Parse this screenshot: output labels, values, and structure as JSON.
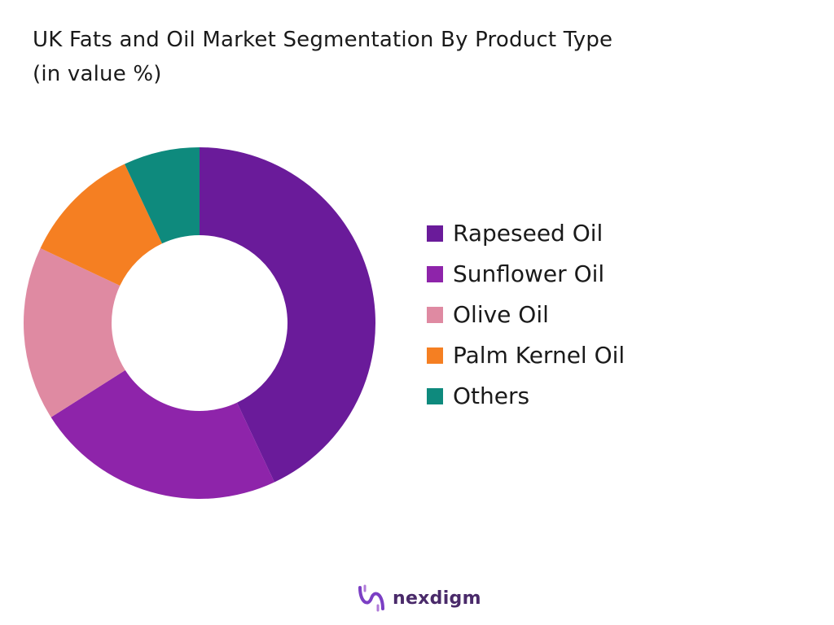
{
  "chart_data": {
    "type": "pie",
    "title": "UK Fats and Oil Market Segmentation By Product Type",
    "subtitle": "(in value %)",
    "hole": true,
    "legend_position": "right",
    "categories": [
      "Rapeseed Oil",
      "Sunflower Oil",
      "Olive Oil",
      "Palm Kernel Oil",
      "Others"
    ],
    "values": [
      43,
      23,
      16,
      11,
      7
    ],
    "colors": [
      "#6a1b9a",
      "#8e24aa",
      "#df8aa2",
      "#f57f22",
      "#0e8a7d"
    ]
  },
  "brand": {
    "name": "nexdigm",
    "logo_color": "#7b3fc4",
    "icon": "nexdigm-logo-icon"
  }
}
